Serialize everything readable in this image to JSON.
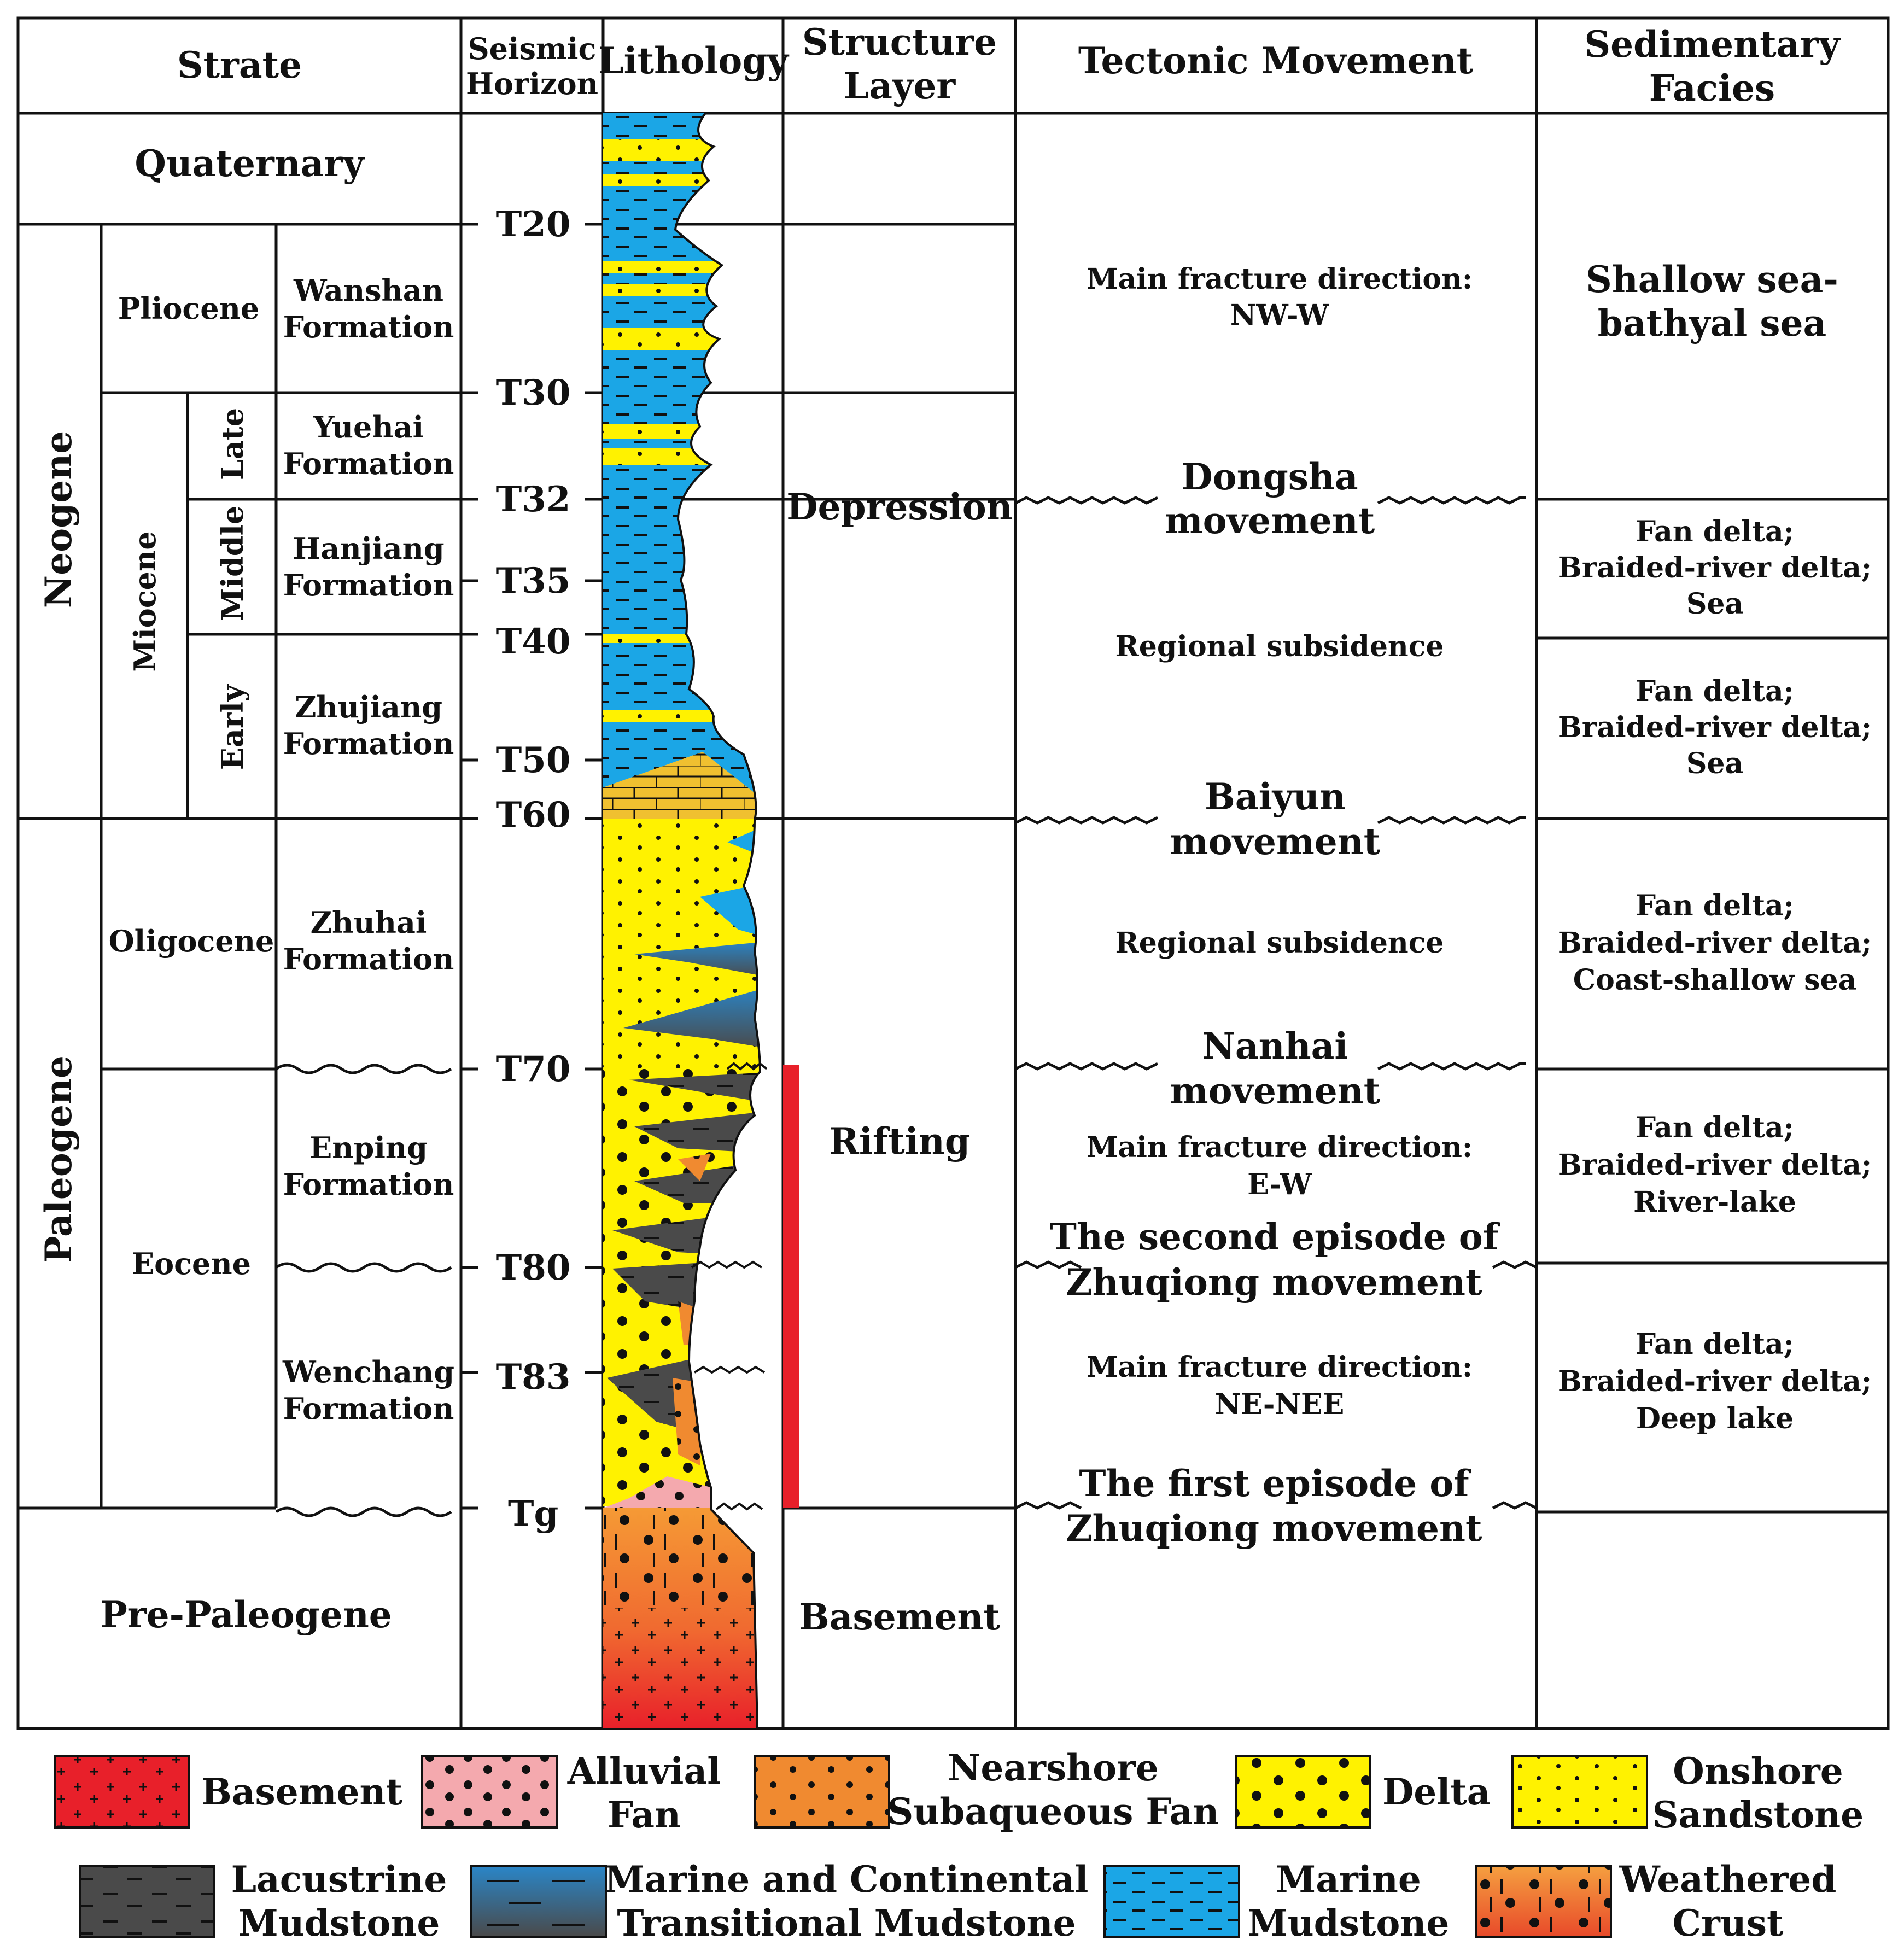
{
  "headers": {
    "strate": "Strate",
    "seismic_line1": "Seismic",
    "seismic_line2": "Horizon",
    "lithology": "Lithology",
    "structure_line1": "Structure",
    "structure_line2": "Layer",
    "tectonic": "Tectonic Movement",
    "facies_line1": "Sedimentary",
    "facies_line2": "Facies"
  },
  "strata": {
    "quaternary": "Quaternary",
    "neogene": "Neogene",
    "paleogene": "Paleogene",
    "pre_paleogene": "Pre-Paleogene",
    "pliocene": "Pliocene",
    "miocene": "Miocene",
    "oligocene": "Oligocene",
    "eocene": "Eocene",
    "late": "Late",
    "middle": "Middle",
    "early": "Early",
    "formations": {
      "wanshan": [
        "Wanshan",
        "Formation"
      ],
      "yuehai": [
        "Yuehai",
        "Formation"
      ],
      "hanjiang": [
        "Hanjiang",
        "Formation"
      ],
      "zhujiang": [
        "Zhujiang",
        "Formation"
      ],
      "zhuhai": [
        "Zhuhai",
        "Formation"
      ],
      "enping": [
        "Enping",
        "Formation"
      ],
      "wenchang": [
        "Wenchang",
        "Formation"
      ]
    }
  },
  "horizons": [
    "T20",
    "T30",
    "T32",
    "T35",
    "T40",
    "T50",
    "T60",
    "T70",
    "T80",
    "T83",
    "Tg"
  ],
  "structure": {
    "depression": "Depression",
    "rifting": "Rifting",
    "basement": "Basement"
  },
  "tectonic": {
    "fracture_nw_l1": "Main fracture direction:",
    "fracture_nw_l2": "NW-W",
    "dongsha_l1": "Dongsha",
    "dongsha_l2": "movement",
    "subsidence1": "Regional subsidence",
    "baiyun_l1": "Baiyun",
    "baiyun_l2": "movement",
    "subsidence2": "Regional subsidence",
    "nanhai_l1": "Nanhai",
    "nanhai_l2": "movement",
    "fracture_ew_l1": "Main fracture direction:",
    "fracture_ew_l2": "E-W",
    "second_l1": "The second episode of",
    "second_l2": "Zhuqiong movement",
    "fracture_ne_l1": "Main fracture direction:",
    "fracture_ne_l2": "NE-NEE",
    "first_l1": "The first episode of",
    "first_l2": "Zhuqiong movement"
  },
  "facies": {
    "f1": [
      "Shallow sea-",
      "bathyal sea"
    ],
    "f2": [
      "Fan delta;",
      "Braided-river delta;",
      "Sea"
    ],
    "f3": [
      "Fan delta;",
      "Braided-river delta;",
      "Sea"
    ],
    "f4": [
      "Fan delta;",
      "Braided-river delta;",
      "Coast-shallow sea"
    ],
    "f5": [
      "Fan delta;",
      "Braided-river delta;",
      "River-lake"
    ],
    "f6": [
      "Fan delta;",
      "Braided-river delta;",
      "Deep lake"
    ]
  },
  "legend": {
    "basement": "Basement",
    "alluvial": [
      "Alluvial",
      "Fan"
    ],
    "nearshore": [
      "Nearshore",
      "Subaqueous Fan"
    ],
    "delta": "Delta",
    "onshore": [
      "Onshore",
      "Sandstone"
    ],
    "lacustrine": [
      "Lacustrine",
      "Mudstone"
    ],
    "transitional": [
      "Marine and Continental",
      "Transitional Mudstone"
    ],
    "marine": [
      "Marine",
      "Mudstone"
    ],
    "weathered": [
      "Weathered",
      "Crust"
    ]
  },
  "colors": {
    "marine_mudstone": "#1ba6e6",
    "sandstone_yellow": "#fff200",
    "lacustrine_mudstone": "#4a4a4a",
    "basement_red": "#e8202a",
    "weathered_orange": "#f08a30",
    "alluvial_pink": "#f4a9ae",
    "rift_bar": "#e8202a"
  }
}
